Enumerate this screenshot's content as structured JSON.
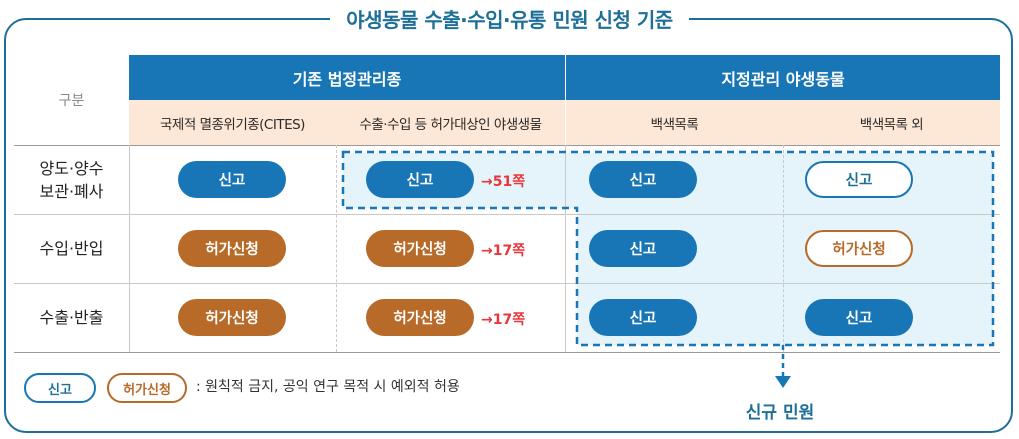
{
  "title": "야생동물 수출·수입·유통 민원 신청 기준",
  "header": {
    "gubun": "구분",
    "group1": "기존 법정관리종",
    "group2": "지정관리 야생동물",
    "sub1": "국제적 멸종위기종(CITES)",
    "sub2": "수출·수입 등 허가대상인 야생생물",
    "sub3": "백색목록",
    "sub4": "백색목록 외"
  },
  "rows": [
    {
      "label_line1": "양도·양수",
      "label_line2": "보관·폐사",
      "c1": "신고",
      "c2": "신고",
      "c2_ref": "→51쪽",
      "c3": "신고",
      "c4": "신고"
    },
    {
      "label_line1": "수입·반입",
      "label_line2": "",
      "c1": "허가신청",
      "c2": "허가신청",
      "c2_ref": "→17쪽",
      "c3": "신고",
      "c4": "허가신청"
    },
    {
      "label_line1": "수출·반출",
      "label_line2": "",
      "c1": "허가신청",
      "c2": "허가신청",
      "c2_ref": "→17쪽",
      "c3": "신고",
      "c4": "신고"
    }
  ],
  "legend": {
    "report": "신고",
    "permit": "허가신청",
    "note": ": 원칙적 금지, 공익 연구 목적 시 예외적 허용"
  },
  "new_label": "신규 민원",
  "colors": {
    "blue": "#1976b6",
    "brown": "#b86a28",
    "header_sub": "#fde7d6",
    "new_zone": "#e5f3fb",
    "ref_red": "#e8363a"
  }
}
